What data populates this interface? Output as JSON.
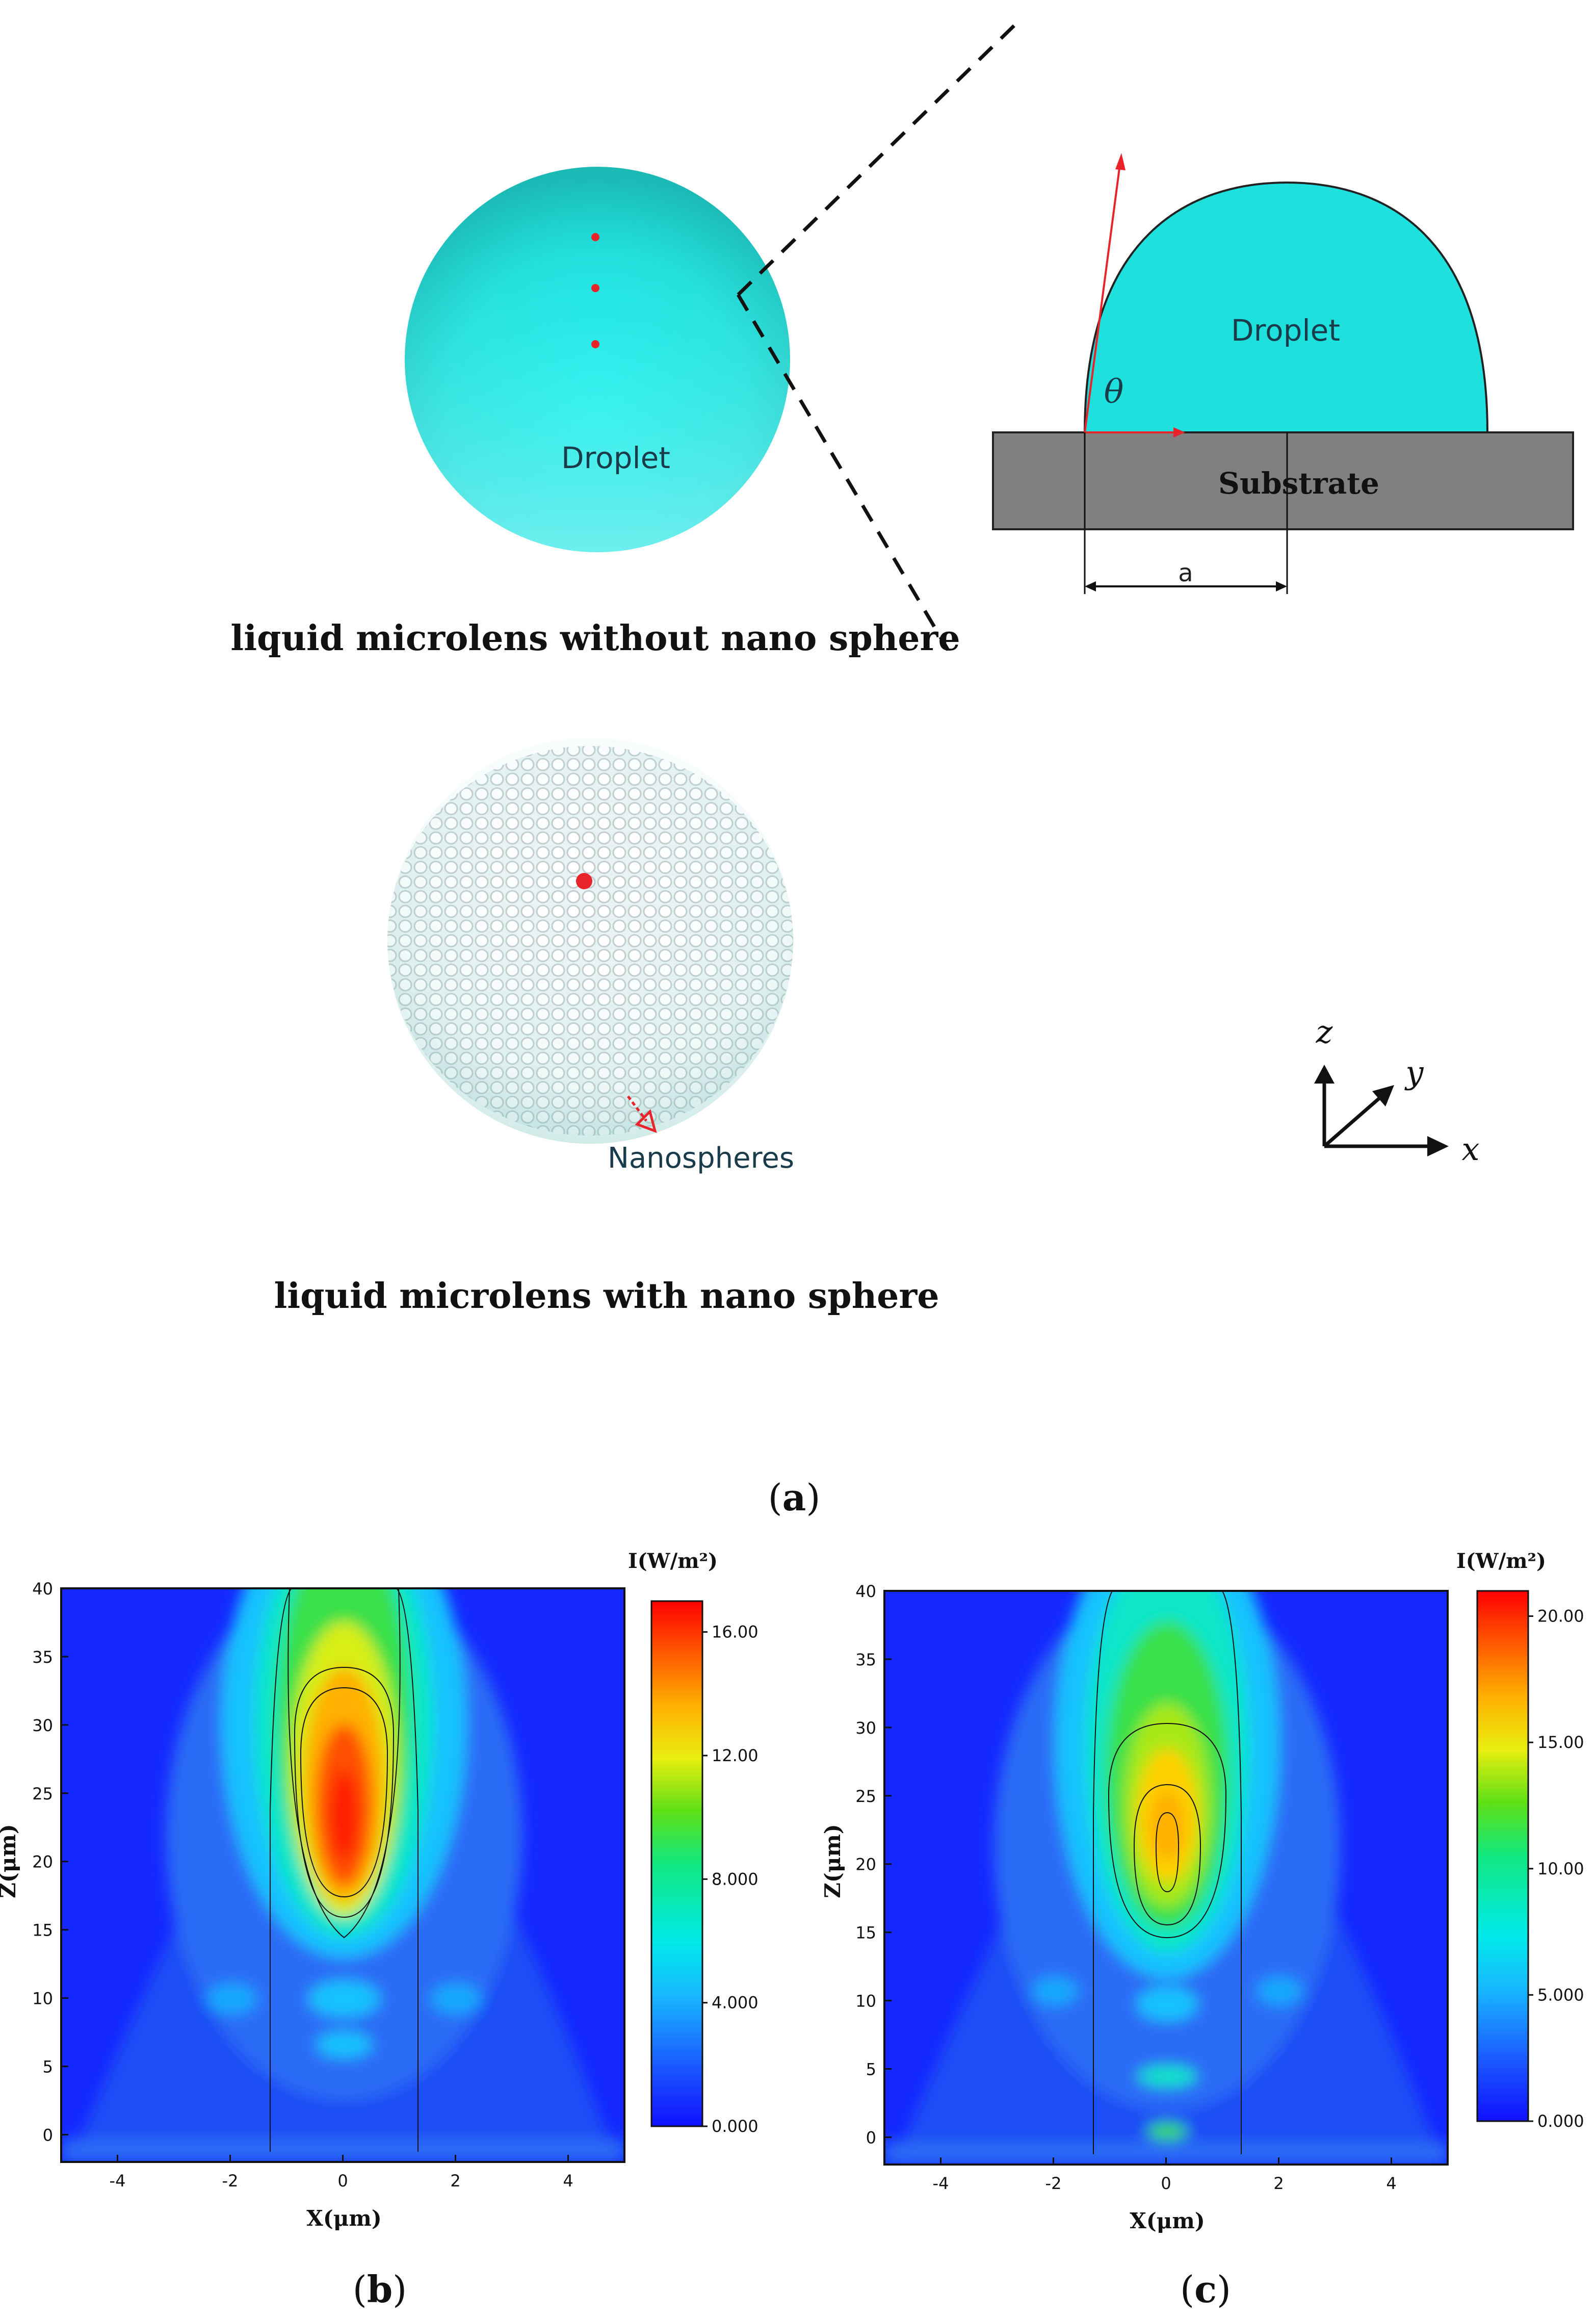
{
  "panel_a": {
    "droplet_top_label": "Droplet",
    "caption_without": "liquid microlens without nano sphere",
    "droplet_side_label": "Droplet",
    "substrate_label": "Substrate",
    "angle_label": "θ",
    "width_label": "a",
    "nanospheres_label": "Nanospheres",
    "caption_with": "liquid microlens with nano sphere",
    "axes": {
      "z": "z",
      "y": "y",
      "x": "x"
    },
    "panel_letter": "a",
    "colors": {
      "droplet": "#1ee0dc",
      "substrate": "#808080",
      "red_marker": "#e8242a"
    }
  },
  "panel_b": {
    "panel_letter": "b",
    "colorbar_title": "I(W/m²)",
    "colorbar_ticks": [
      "0.000",
      "4.000",
      "8.000",
      "12.00",
      "16.00"
    ],
    "xlabel": "X(μm)",
    "ylabel": "Z(μm)",
    "xticks": [
      "-4",
      "-2",
      "0",
      "2",
      "4"
    ],
    "yticks": [
      "0",
      "5",
      "10",
      "15",
      "20",
      "25",
      "30",
      "35",
      "40"
    ]
  },
  "panel_c": {
    "panel_letter": "c",
    "colorbar_title": "I(W/m²)",
    "colorbar_ticks": [
      "0.000",
      "5.000",
      "10.00",
      "15.00",
      "20.00"
    ],
    "xlabel": "X(μm)",
    "ylabel": "Z(μm)",
    "xticks": [
      "-4",
      "-2",
      "0",
      "2",
      "4"
    ],
    "yticks": [
      "0",
      "5",
      "10",
      "15",
      "20",
      "25",
      "30",
      "35",
      "40"
    ]
  },
  "chart_data": [
    {
      "type": "heatmap",
      "panel": "b",
      "xlabel": "X(μm)",
      "ylabel": "Z(μm)",
      "xlim": [
        -5,
        5
      ],
      "ylim": [
        -2,
        40
      ],
      "color_range": [
        0,
        17
      ],
      "colorbar_ticks": [
        0,
        4,
        8,
        12,
        16
      ],
      "peak": {
        "x": 0,
        "z": 24,
        "value": 16
      }
    },
    {
      "type": "heatmap",
      "panel": "c",
      "xlabel": "X(μm)",
      "ylabel": "Z(μm)",
      "xlim": [
        -5,
        5
      ],
      "ylim": [
        -2,
        40
      ],
      "color_range": [
        0,
        21
      ],
      "colorbar_ticks": [
        0,
        5,
        10,
        15,
        20
      ],
      "peak": {
        "x": 0,
        "z": 23,
        "value": 16
      }
    }
  ]
}
